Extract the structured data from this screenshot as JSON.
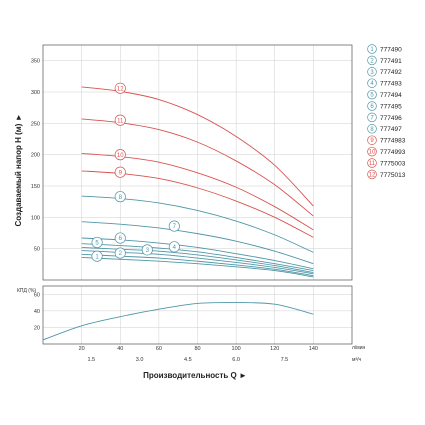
{
  "chart_data": [
    {
      "type": "line",
      "ylabel": "Создаваемый напор H (м) ►",
      "ylim": [
        0,
        375
      ],
      "yticks": [
        "50",
        "100",
        "150",
        "200",
        "250",
        "300",
        "350"
      ],
      "xlim": [
        0,
        160
      ],
      "grid": true,
      "legend_position": "right",
      "series": [
        {
          "name": "777490",
          "badge": "1",
          "color": "#4f97a8",
          "x": [
            20,
            40,
            60,
            80,
            100,
            120,
            140
          ],
          "values": [
            36,
            33,
            30,
            26,
            21,
            15,
            5
          ]
        },
        {
          "name": "777491",
          "badge": "2",
          "color": "#4f97a8",
          "x": [
            20,
            40,
            60,
            80,
            100,
            120,
            140
          ],
          "values": [
            41,
            38,
            35,
            30,
            24,
            17,
            7
          ]
        },
        {
          "name": "777492",
          "badge": "3",
          "color": "#4f97a8",
          "x": [
            20,
            40,
            60,
            80,
            100,
            120,
            140
          ],
          "values": [
            47,
            44,
            41,
            35,
            28,
            20,
            10
          ]
        },
        {
          "name": "777493",
          "badge": "4",
          "color": "#4f97a8",
          "x": [
            20,
            40,
            60,
            80,
            100,
            120,
            140
          ],
          "values": [
            52,
            49,
            46,
            40,
            32,
            23,
            12
          ]
        },
        {
          "name": "777494",
          "badge": "5",
          "color": "#4f97a8",
          "x": [
            20,
            40,
            60,
            80,
            100,
            120,
            140
          ],
          "values": [
            58,
            55,
            51,
            45,
            36,
            26,
            15
          ]
        },
        {
          "name": "777495",
          "badge": "6",
          "color": "#4f97a8",
          "x": [
            20,
            40,
            60,
            80,
            100,
            120,
            140
          ],
          "values": [
            67,
            64,
            59,
            52,
            42,
            31,
            18
          ]
        },
        {
          "name": "777496",
          "badge": "7",
          "color": "#4f97a8",
          "x": [
            20,
            40,
            60,
            80,
            100,
            120,
            140
          ],
          "values": [
            93,
            89,
            83,
            74,
            62,
            46,
            26
          ]
        },
        {
          "name": "777497",
          "badge": "8",
          "color": "#4f97a8",
          "x": [
            20,
            40,
            60,
            80,
            100,
            120,
            140
          ],
          "values": [
            134,
            130,
            123,
            111,
            94,
            72,
            44
          ]
        },
        {
          "name": "7774983",
          "badge": "9",
          "color": "#d9534f",
          "x": [
            20,
            40,
            60,
            80,
            100,
            120,
            140
          ],
          "values": [
            174,
            170,
            162,
            147,
            126,
            100,
            68
          ]
        },
        {
          "name": "7774993",
          "badge": "10",
          "color": "#d9534f",
          "x": [
            20,
            40,
            60,
            80,
            100,
            120,
            140
          ],
          "values": [
            202,
            197,
            188,
            171,
            148,
            117,
            80
          ]
        },
        {
          "name": "7775003",
          "badge": "11",
          "color": "#d9534f",
          "x": [
            20,
            40,
            60,
            80,
            100,
            120,
            140
          ],
          "values": [
            257,
            251,
            240,
            220,
            190,
            152,
            102
          ]
        },
        {
          "name": "7775013",
          "badge": "12",
          "color": "#d9534f",
          "x": [
            20,
            40,
            60,
            80,
            100,
            120,
            140
          ],
          "values": [
            308,
            301,
            288,
            264,
            229,
            183,
            118
          ]
        }
      ],
      "labels": [
        {
          "badge": "1",
          "x": 28,
          "y": 38
        },
        {
          "badge": "2",
          "x": 40,
          "y": 43
        },
        {
          "badge": "3",
          "x": 54,
          "y": 48
        },
        {
          "badge": "4",
          "x": 68,
          "y": 53
        },
        {
          "badge": "5",
          "x": 28,
          "y": 60
        },
        {
          "badge": "6",
          "x": 40,
          "y": 67
        },
        {
          "badge": "7",
          "x": 68,
          "y": 86
        },
        {
          "badge": "8",
          "x": 40,
          "y": 133
        },
        {
          "badge": "9",
          "x": 40,
          "y": 172
        },
        {
          "badge": "10",
          "x": 40,
          "y": 200
        },
        {
          "badge": "11",
          "x": 40,
          "y": 255
        },
        {
          "badge": "12",
          "x": 40,
          "y": 306
        }
      ]
    },
    {
      "type": "line",
      "ylabel": "КПД (%)",
      "ylim": [
        0,
        70
      ],
      "yticks": [
        "20",
        "40",
        "60"
      ],
      "xlim": [
        0,
        160
      ],
      "grid": true,
      "xticks": [
        "20",
        "40",
        "60",
        "80",
        "100",
        "120",
        "140"
      ],
      "xticks_secondary": [
        "1.5",
        "3.0",
        "4.5",
        "6.0",
        "7.5"
      ],
      "xticks_secondary_values": [
        25,
        50,
        75,
        100,
        125
      ],
      "xunit": "л/мин",
      "xunit_secondary": "м³/ч",
      "xlabel": "Производительность Q ►",
      "series": [
        {
          "name": "КПД",
          "color": "#4f97a8",
          "x": [
            0,
            20,
            40,
            60,
            80,
            100,
            120,
            140
          ],
          "values": [
            5,
            22,
            33,
            42,
            49,
            50,
            48,
            36
          ]
        }
      ]
    }
  ]
}
